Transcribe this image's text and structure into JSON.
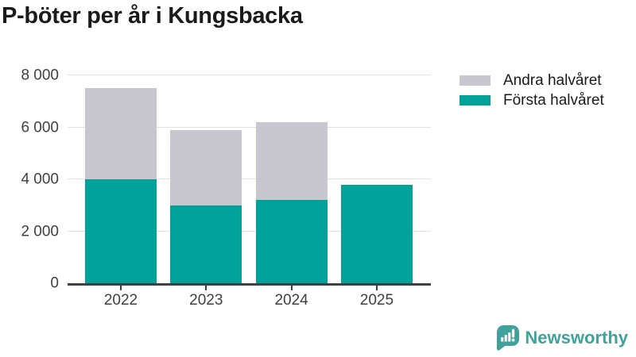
{
  "header": {
    "title": "P-böter per år i Kungsbacka"
  },
  "chart_data": {
    "type": "bar",
    "stacked": true,
    "title": "P-böter per år i Kungsbacka",
    "categories": [
      "2022",
      "2023",
      "2024",
      "2025"
    ],
    "series": [
      {
        "name": "Första halvåret",
        "color": "#00a29a",
        "values": [
          4000,
          3000,
          3200,
          3800
        ]
      },
      {
        "name": "Andra halvåret",
        "color": "#c8c7d0",
        "values": [
          3500,
          2900,
          3000,
          0
        ]
      }
    ],
    "stack_totals": [
      7500,
      5900,
      6200,
      3800
    ],
    "xlabel": "",
    "ylabel": "",
    "ylim": [
      0,
      8000
    ],
    "yticks": [
      0,
      2000,
      4000,
      6000,
      8000
    ],
    "ytick_labels": [
      "0",
      "2 000",
      "4 000",
      "6 000",
      "8 000"
    ],
    "grid": true,
    "legend_position": "top-right",
    "legend": [
      {
        "label": "Andra halvåret",
        "color": "#c8c7d0"
      },
      {
        "label": "Första halvåret",
        "color": "#00a29a"
      }
    ]
  },
  "branding": {
    "logo_text": "Newsworthy",
    "logo_color": "#3fa29b"
  },
  "colors": {
    "teal": "#00a29a",
    "gray": "#c8c7d0",
    "title_text": "#1a1a1a",
    "axis_text": "#3f3f45",
    "axis_line": "#3f3f45",
    "gridline": "#e0e0e2",
    "background": "#ffffff"
  }
}
